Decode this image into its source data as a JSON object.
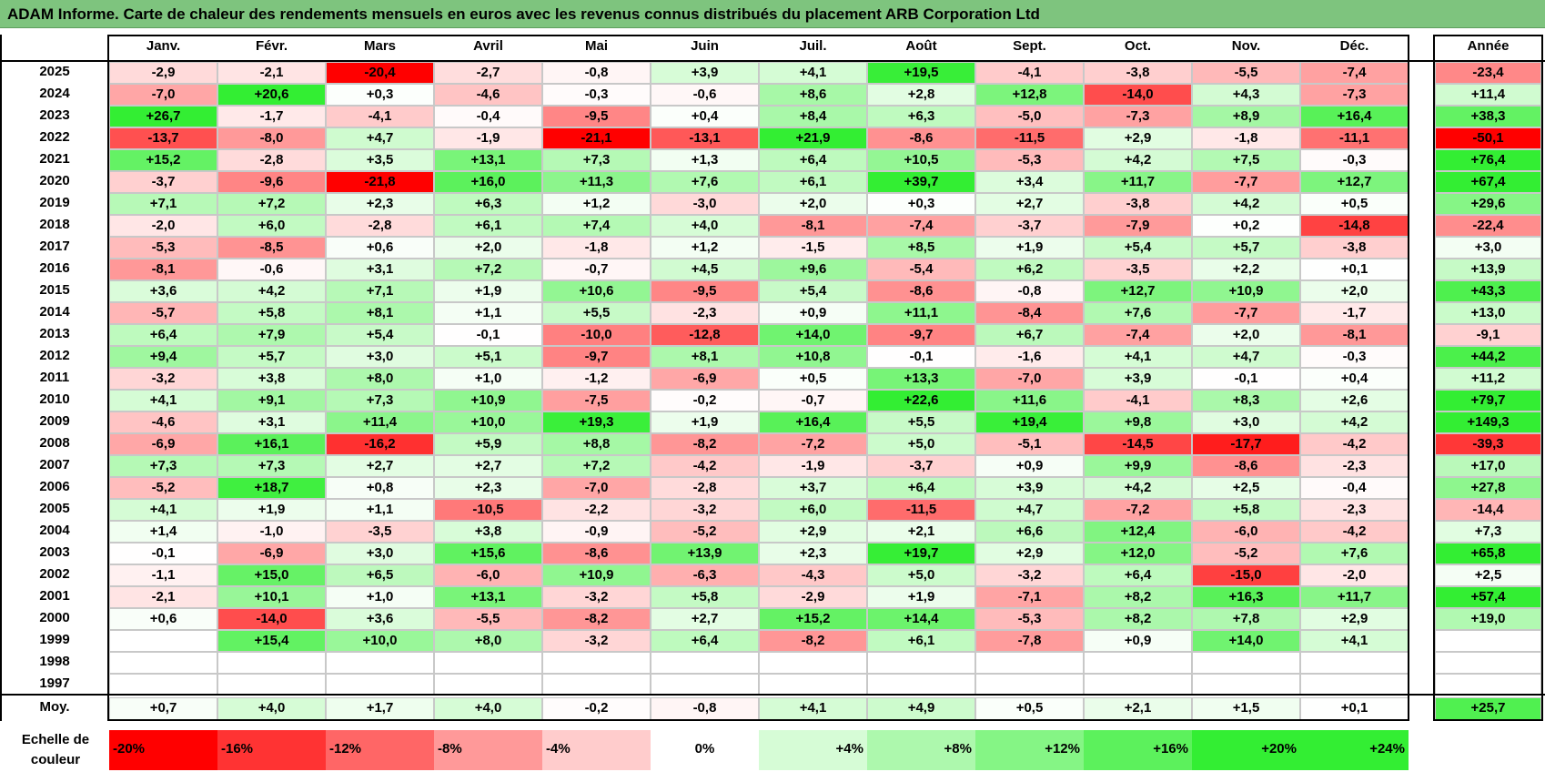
{
  "title": "ADAM Informe. Carte de chaleur des rendements mensuels en euros avec les revenus connus distribués du placement ARB Corporation Ltd",
  "months": [
    "Janv.",
    "Févr.",
    "Mars",
    "Avril",
    "Mai",
    "Juin",
    "Juil.",
    "Août",
    "Sept.",
    "Oct.",
    "Nov.",
    "Déc."
  ],
  "year_header": "Année",
  "average_label": "Moy.",
  "scale_label": "Echelle de couleur",
  "scale": [
    "-20%",
    "-16%",
    "-12%",
    "-8%",
    "-4%",
    "0%",
    "+4%",
    "+8%",
    "+12%",
    "+16%",
    "+20%",
    "+24%"
  ],
  "colors": {
    "neg_max": "#ff0000",
    "neutral": "#ffffff",
    "pos_max": "#33ee33",
    "header_bar": "#7ec47e"
  },
  "chart_data": {
    "type": "heatmap",
    "title": "ADAM Informe. Carte de chaleur des rendements mensuels en euros avec les revenus connus distribués du placement ARB Corporation Ltd",
    "x": [
      "Janv.",
      "Févr.",
      "Mars",
      "Avril",
      "Mai",
      "Juin",
      "Juil.",
      "Août",
      "Sept.",
      "Oct.",
      "Nov.",
      "Déc."
    ],
    "rows": [
      {
        "year": "2025",
        "values": [
          "-2,9",
          "-2,1",
          "-20,4",
          "-2,7",
          "-0,8",
          "+3,9",
          "+4,1",
          "+19,5",
          "-4,1",
          "-3,8",
          "-5,5",
          "-7,4"
        ],
        "annual": "-23,4"
      },
      {
        "year": "2024",
        "values": [
          "-7,0",
          "+20,6",
          "+0,3",
          "-4,6",
          "-0,3",
          "-0,6",
          "+8,6",
          "+2,8",
          "+12,8",
          "-14,0",
          "+4,3",
          "-7,3"
        ],
        "annual": "+11,4"
      },
      {
        "year": "2023",
        "values": [
          "+26,7",
          "-1,7",
          "-4,1",
          "-0,4",
          "-9,5",
          "+0,4",
          "+8,4",
          "+6,3",
          "-5,0",
          "-7,3",
          "+8,9",
          "+16,4"
        ],
        "annual": "+38,3"
      },
      {
        "year": "2022",
        "values": [
          "-13,7",
          "-8,0",
          "+4,7",
          "-1,9",
          "-21,1",
          "-13,1",
          "+21,9",
          "-8,6",
          "-11,5",
          "+2,9",
          "-1,8",
          "-11,1"
        ],
        "annual": "-50,1"
      },
      {
        "year": "2021",
        "values": [
          "+15,2",
          "-2,8",
          "+3,5",
          "+13,1",
          "+7,3",
          "+1,3",
          "+6,4",
          "+10,5",
          "-5,3",
          "+4,2",
          "+7,5",
          "-0,3"
        ],
        "annual": "+76,4"
      },
      {
        "year": "2020",
        "values": [
          "-3,7",
          "-9,6",
          "-21,8",
          "+16,0",
          "+11,3",
          "+7,6",
          "+6,1",
          "+39,7",
          "+3,4",
          "+11,7",
          "-7,7",
          "+12,7"
        ],
        "annual": "+67,4"
      },
      {
        "year": "2019",
        "values": [
          "+7,1",
          "+7,2",
          "+2,3",
          "+6,3",
          "+1,2",
          "-3,0",
          "+2,0",
          "+0,3",
          "+2,7",
          "-3,8",
          "+4,2",
          "+0,5"
        ],
        "annual": "+29,6"
      },
      {
        "year": "2018",
        "values": [
          "-2,0",
          "+6,0",
          "-2,8",
          "+6,1",
          "+7,4",
          "+4,0",
          "-8,1",
          "-7,4",
          "-3,7",
          "-7,9",
          "+0,2",
          "-14,8"
        ],
        "annual": "-22,4"
      },
      {
        "year": "2017",
        "values": [
          "-5,3",
          "-8,5",
          "+0,6",
          "+2,0",
          "-1,8",
          "+1,2",
          "-1,5",
          "+8,5",
          "+1,9",
          "+5,4",
          "+5,7",
          "-3,8"
        ],
        "annual": "+3,0"
      },
      {
        "year": "2016",
        "values": [
          "-8,1",
          "-0,6",
          "+3,1",
          "+7,2",
          "-0,7",
          "+4,5",
          "+9,6",
          "-5,4",
          "+6,2",
          "-3,5",
          "+2,2",
          "+0,1"
        ],
        "annual": "+13,9"
      },
      {
        "year": "2015",
        "values": [
          "+3,6",
          "+4,2",
          "+7,1",
          "+1,9",
          "+10,6",
          "-9,5",
          "+5,4",
          "-8,6",
          "-0,8",
          "+12,7",
          "+10,9",
          "+2,0"
        ],
        "annual": "+43,3"
      },
      {
        "year": "2014",
        "values": [
          "-5,7",
          "+5,8",
          "+8,1",
          "+1,1",
          "+5,5",
          "-2,3",
          "+0,9",
          "+11,1",
          "-8,4",
          "+7,6",
          "-7,7",
          "-1,7"
        ],
        "annual": "+13,0"
      },
      {
        "year": "2013",
        "values": [
          "+6,4",
          "+7,9",
          "+5,4",
          "-0,1",
          "-10,0",
          "-12,8",
          "+14,0",
          "-9,7",
          "+6,7",
          "-7,4",
          "+2,0",
          "-8,1"
        ],
        "annual": "-9,1"
      },
      {
        "year": "2012",
        "values": [
          "+9,4",
          "+5,7",
          "+3,0",
          "+5,1",
          "-9,7",
          "+8,1",
          "+10,8",
          "-0,1",
          "-1,6",
          "+4,1",
          "+4,7",
          "-0,3"
        ],
        "annual": "+44,2"
      },
      {
        "year": "2011",
        "values": [
          "-3,2",
          "+3,8",
          "+8,0",
          "+1,0",
          "-1,2",
          "-6,9",
          "+0,5",
          "+13,3",
          "-7,0",
          "+3,9",
          "-0,1",
          "+0,4"
        ],
        "annual": "+11,2"
      },
      {
        "year": "2010",
        "values": [
          "+4,1",
          "+9,1",
          "+7,3",
          "+10,9",
          "-7,5",
          "-0,2",
          "-0,7",
          "+22,6",
          "+11,6",
          "-4,1",
          "+8,3",
          "+2,6"
        ],
        "annual": "+79,7"
      },
      {
        "year": "2009",
        "values": [
          "-4,6",
          "+3,1",
          "+11,4",
          "+10,0",
          "+19,3",
          "+1,9",
          "+16,4",
          "+5,5",
          "+19,4",
          "+9,8",
          "+3,0",
          "+4,2"
        ],
        "annual": "+149,3"
      },
      {
        "year": "2008",
        "values": [
          "-6,9",
          "+16,1",
          "-16,2",
          "+5,9",
          "+8,8",
          "-8,2",
          "-7,2",
          "+5,0",
          "-5,1",
          "-14,5",
          "-17,7",
          "-4,2"
        ],
        "annual": "-39,3"
      },
      {
        "year": "2007",
        "values": [
          "+7,3",
          "+7,3",
          "+2,7",
          "+2,7",
          "+7,2",
          "-4,2",
          "-1,9",
          "-3,7",
          "+0,9",
          "+9,9",
          "-8,6",
          "-2,3"
        ],
        "annual": "+17,0"
      },
      {
        "year": "2006",
        "values": [
          "-5,2",
          "+18,7",
          "+0,8",
          "+2,3",
          "-7,0",
          "-2,8",
          "+3,7",
          "+6,4",
          "+3,9",
          "+4,2",
          "+2,5",
          "-0,4"
        ],
        "annual": "+27,8"
      },
      {
        "year": "2005",
        "values": [
          "+4,1",
          "+1,9",
          "+1,1",
          "-10,5",
          "-2,2",
          "-3,2",
          "+6,0",
          "-11,5",
          "+4,7",
          "-7,2",
          "+5,8",
          "-2,3"
        ],
        "annual": "-14,4"
      },
      {
        "year": "2004",
        "values": [
          "+1,4",
          "-1,0",
          "-3,5",
          "+3,8",
          "-0,9",
          "-5,2",
          "+2,9",
          "+2,1",
          "+6,6",
          "+12,4",
          "-6,0",
          "-4,2"
        ],
        "annual": "+7,3"
      },
      {
        "year": "2003",
        "values": [
          "-0,1",
          "-6,9",
          "+3,0",
          "+15,6",
          "-8,6",
          "+13,9",
          "+2,3",
          "+19,7",
          "+2,9",
          "+12,0",
          "-5,2",
          "+7,6"
        ],
        "annual": "+65,8"
      },
      {
        "year": "2002",
        "values": [
          "-1,1",
          "+15,0",
          "+6,5",
          "-6,0",
          "+10,9",
          "-6,3",
          "-4,3",
          "+5,0",
          "-3,2",
          "+6,4",
          "-15,0",
          "-2,0"
        ],
        "annual": "+2,5"
      },
      {
        "year": "2001",
        "values": [
          "-2,1",
          "+10,1",
          "+1,0",
          "+13,1",
          "-3,2",
          "+5,8",
          "-2,9",
          "+1,9",
          "-7,1",
          "+8,2",
          "+16,3",
          "+11,7"
        ],
        "annual": "+57,4"
      },
      {
        "year": "2000",
        "values": [
          "+0,6",
          "-14,0",
          "+3,6",
          "-5,5",
          "-8,2",
          "+2,7",
          "+15,2",
          "+14,4",
          "-5,3",
          "+8,2",
          "+7,8",
          "+2,9"
        ],
        "annual": "+19,0"
      },
      {
        "year": "1999",
        "values": [
          "",
          "+15,4",
          "+10,0",
          "+8,0",
          "-3,2",
          "+6,4",
          "-8,2",
          "+6,1",
          "-7,8",
          "+0,9",
          "+14,0",
          "+4,1"
        ],
        "annual": ""
      },
      {
        "year": "1998",
        "values": [
          "",
          "",
          "",
          "",
          "",
          "",
          "",
          "",
          "",
          "",
          "",
          ""
        ],
        "annual": ""
      },
      {
        "year": "1997",
        "values": [
          "",
          "",
          "",
          "",
          "",
          "",
          "",
          "",
          "",
          "",
          "",
          ""
        ],
        "annual": ""
      }
    ],
    "average": {
      "values": [
        "+0,7",
        "+4,0",
        "+1,7",
        "+4,0",
        "-0,2",
        "-0,8",
        "+4,1",
        "+4,9",
        "+0,5",
        "+2,1",
        "+1,5",
        "+0,1"
      ],
      "annual": "+25,7"
    },
    "color_scale_range": [
      -20,
      24
    ]
  }
}
